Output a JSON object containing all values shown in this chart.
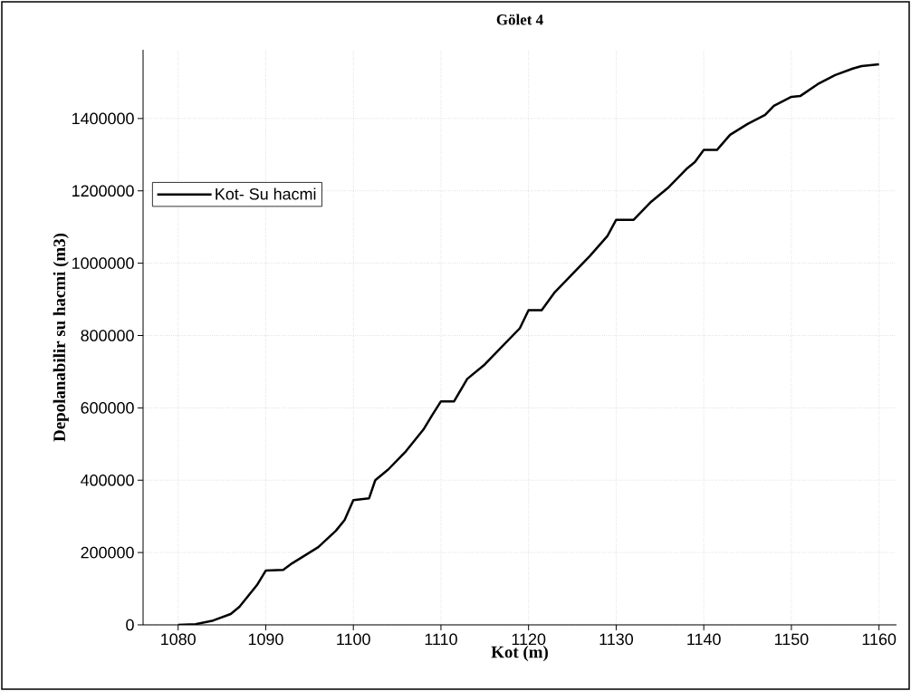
{
  "chart_data": {
    "type": "line",
    "title": "Gölet 4",
    "xlabel": "Kot (m)",
    "ylabel": "Depolanabilir su hacmi (m3)",
    "x": [
      1080,
      1082,
      1084,
      1086,
      1087,
      1088,
      1089,
      1090,
      1092,
      1093,
      1094,
      1096,
      1098,
      1099,
      1100,
      1101.8,
      1102.5,
      1104,
      1106,
      1108,
      1109,
      1110,
      1111.5,
      1113,
      1115,
      1117,
      1119,
      1120,
      1121.5,
      1123,
      1125,
      1127,
      1129,
      1130,
      1132,
      1134,
      1136,
      1138,
      1139,
      1140,
      1141.5,
      1143,
      1145,
      1147,
      1148,
      1150,
      1151,
      1153,
      1155,
      1157,
      1158,
      1160
    ],
    "series": [
      {
        "name": "Kot- Su hacmi",
        "color": "#000000",
        "values": [
          0,
          2000,
          12000,
          30000,
          50000,
          80000,
          110000,
          150000,
          152000,
          170000,
          185000,
          215000,
          260000,
          290000,
          345000,
          350000,
          400000,
          430000,
          480000,
          540000,
          580000,
          618000,
          618000,
          680000,
          720000,
          770000,
          820000,
          870000,
          870000,
          920000,
          970000,
          1020000,
          1075000,
          1120000,
          1120000,
          1170000,
          1210000,
          1260000,
          1280000,
          1313000,
          1313000,
          1355000,
          1385000,
          1410000,
          1435000,
          1460000,
          1462000,
          1495000,
          1520000,
          1538000,
          1545000,
          1550000
        ]
      }
    ],
    "xlim": [
      1076,
      1162
    ],
    "ylim": [
      0,
      1590000
    ],
    "xticks": [
      1080,
      1090,
      1100,
      1110,
      1120,
      1130,
      1140,
      1150,
      1160
    ],
    "yticks": [
      0,
      200000,
      400000,
      600000,
      800000,
      1000000,
      1200000,
      1400000
    ],
    "grid": true,
    "legend": "top left",
    "marker": "none",
    "line_style": "solid"
  }
}
